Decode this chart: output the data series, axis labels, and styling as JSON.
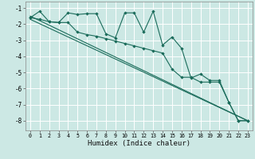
{
  "xlabel": "Humidex (Indice chaleur)",
  "bg_color": "#cce8e4",
  "grid_color": "#ffffff",
  "line_color": "#1a6b5a",
  "xlim": [
    -0.5,
    23.5
  ],
  "ylim": [
    -8.6,
    -0.6
  ],
  "x_ticks": [
    0,
    1,
    2,
    3,
    4,
    5,
    6,
    7,
    8,
    9,
    10,
    11,
    12,
    13,
    14,
    15,
    16,
    17,
    18,
    19,
    20,
    21,
    22,
    23
  ],
  "y_ticks": [
    -8,
    -7,
    -6,
    -5,
    -4,
    -3,
    -2,
    -1
  ],
  "series1_x": [
    0,
    1,
    2,
    3,
    4,
    5,
    6,
    7,
    8,
    9,
    10,
    11,
    12,
    13,
    14,
    15,
    16,
    17,
    18,
    19,
    20,
    21,
    22,
    23
  ],
  "series1_y": [
    -1.6,
    -1.2,
    -1.85,
    -1.9,
    -1.3,
    -1.4,
    -1.35,
    -1.35,
    -2.6,
    -2.85,
    -1.3,
    -1.3,
    -2.5,
    -1.2,
    -3.3,
    -2.8,
    -3.5,
    -5.35,
    -5.1,
    -5.5,
    -5.5,
    -6.85,
    -8.0,
    -8.0
  ],
  "series2_x": [
    0,
    1,
    2,
    3,
    4,
    5,
    6,
    7,
    8,
    9,
    10,
    11,
    12,
    13,
    14,
    15,
    16,
    17,
    18,
    19,
    20,
    21,
    22,
    23
  ],
  "series2_y": [
    -1.6,
    -1.7,
    -1.85,
    -1.9,
    -1.9,
    -2.5,
    -2.65,
    -2.75,
    -2.9,
    -3.05,
    -3.2,
    -3.35,
    -3.5,
    -3.65,
    -3.8,
    -4.8,
    -5.3,
    -5.3,
    -5.6,
    -5.6,
    -5.6,
    -6.85,
    -8.0,
    -8.0
  ],
  "trend1_x": [
    0,
    23
  ],
  "trend1_y": [
    -1.5,
    -8.0
  ],
  "trend2_x": [
    0,
    23
  ],
  "trend2_y": [
    -1.7,
    -8.0
  ]
}
